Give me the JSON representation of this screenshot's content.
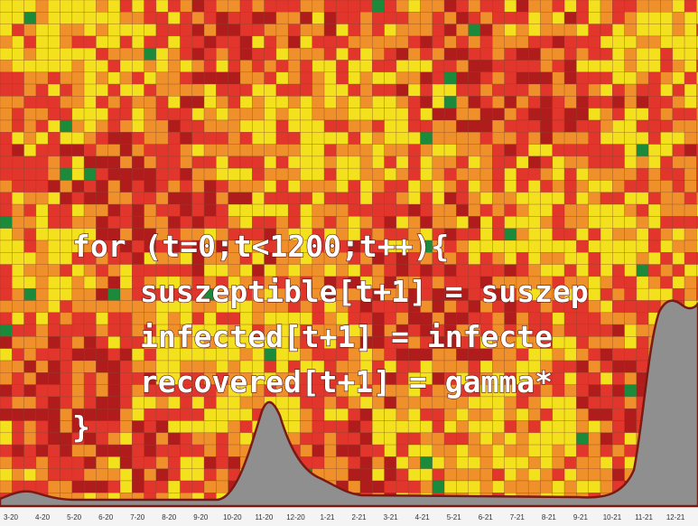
{
  "code": {
    "lines": [
      "for (t=0;t<1200;t++){",
      "suszeptible[t+1] = suszep",
      "infected[t+1] = infecte",
      "recovered[t+1] = gamma*",
      "}"
    ]
  },
  "axis": {
    "labels": [
      "3-20",
      "4-20",
      "5-20",
      "6-20",
      "7-20",
      "8-20",
      "9-20",
      "10-20",
      "11-20",
      "12-20",
      "1-21",
      "2-21",
      "3-21",
      "4-21",
      "5-21",
      "6-21",
      "7-21",
      "8-21",
      "9-21",
      "10-21",
      "11-21",
      "12-21"
    ]
  }
}
